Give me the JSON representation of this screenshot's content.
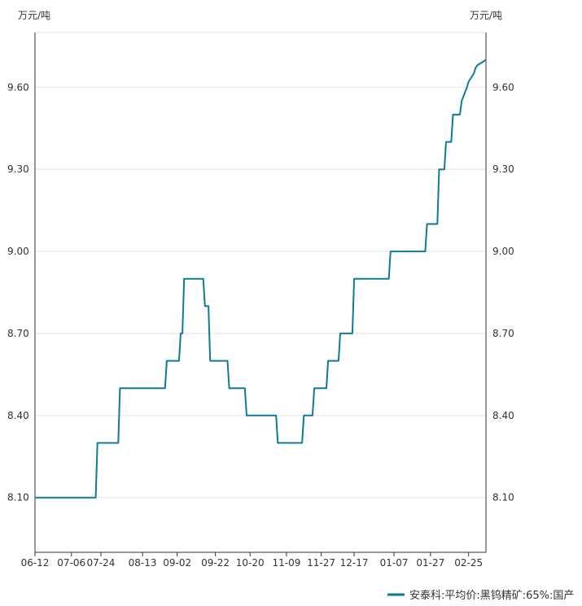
{
  "chart_data": {
    "type": "line",
    "title": "",
    "ylabel_left": "万元/吨",
    "ylabel_right": "万元/吨",
    "ylim": [
      7.9,
      9.8
    ],
    "yticks": [
      "8.10",
      "8.40",
      "8.70",
      "9.00",
      "9.30",
      "9.60"
    ],
    "ytick_values": [
      8.1,
      8.4,
      8.7,
      9.0,
      9.3,
      9.6
    ],
    "xlim": [
      0,
      260
    ],
    "xtick_labels": [
      "06-12",
      "07-06",
      "07-24",
      "08-13",
      "09-02",
      "09-22",
      "10-20",
      "11-09",
      "11-27",
      "12-17",
      "01-07",
      "01-27",
      "02-25"
    ],
    "xtick_positions": [
      0,
      21,
      38,
      62,
      82,
      104,
      124,
      145,
      165,
      184,
      207,
      228,
      250
    ],
    "grid": true,
    "legend_position": "bottom-right",
    "color": "#0e7c94",
    "series": [
      {
        "name": "安泰科:平均价:黑钨精矿:65%:国产",
        "x": [
          0,
          35,
          36,
          48,
          49,
          75,
          76,
          83,
          84,
          85,
          86,
          97,
          98,
          100,
          101,
          111,
          112,
          121,
          122,
          139,
          140,
          154,
          155,
          160,
          161,
          168,
          169,
          175,
          176,
          183,
          184,
          204,
          205,
          225,
          226,
          232,
          233,
          236,
          237,
          240,
          241,
          245,
          246,
          249,
          250,
          253,
          254,
          255,
          260
        ],
        "y": [
          8.1,
          8.1,
          8.3,
          8.3,
          8.5,
          8.5,
          8.6,
          8.6,
          8.7,
          8.7,
          8.9,
          8.9,
          8.8,
          8.8,
          8.6,
          8.6,
          8.5,
          8.5,
          8.4,
          8.4,
          8.3,
          8.3,
          8.4,
          8.4,
          8.5,
          8.5,
          8.6,
          8.6,
          8.7,
          8.7,
          8.9,
          8.9,
          9.0,
          9.0,
          9.1,
          9.1,
          9.3,
          9.3,
          9.4,
          9.4,
          9.5,
          9.5,
          9.55,
          9.6,
          9.62,
          9.65,
          9.67,
          9.68,
          9.7
        ]
      }
    ]
  }
}
